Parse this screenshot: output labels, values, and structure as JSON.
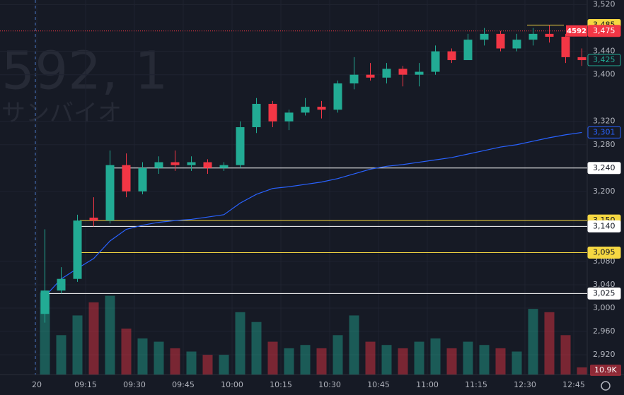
{
  "chart_data": {
    "type": "candlestick",
    "watermark": {
      "symbol": "592, 1",
      "name": "サンバイオ"
    },
    "categories": [
      "20",
      null,
      null,
      "09:15",
      null,
      null,
      "09:30",
      null,
      null,
      "09:45",
      null,
      null,
      "10:00",
      null,
      null,
      "10:15",
      null,
      null,
      "10:30",
      null,
      null,
      "10:45",
      null,
      null,
      "11:00",
      null,
      null,
      "11:15",
      null,
      null,
      "12:30",
      null,
      null,
      "12:45"
    ],
    "open": [
      2990,
      3030,
      3050,
      3155,
      3150,
      3245,
      3200,
      3240,
      3250,
      3245,
      3250,
      3240,
      3245,
      3310,
      3350,
      3320,
      3335,
      3345,
      3340,
      3385,
      3400,
      3395,
      3410,
      3400,
      3405,
      3440,
      3425,
      3460,
      3470,
      3445,
      3460,
      3470,
      3465,
      3430
    ],
    "high": [
      3135,
      3070,
      3160,
      3190,
      3270,
      3265,
      3250,
      3260,
      3270,
      3260,
      3255,
      3250,
      3320,
      3360,
      3355,
      3340,
      3360,
      3355,
      3390,
      3430,
      3420,
      3420,
      3415,
      3420,
      3450,
      3445,
      3470,
      3480,
      3475,
      3470,
      3480,
      3485,
      3470,
      3445
    ],
    "low": [
      2975,
      3025,
      3045,
      3140,
      3145,
      3190,
      3195,
      3230,
      3235,
      3235,
      3230,
      3235,
      3240,
      3300,
      3310,
      3305,
      3330,
      3325,
      3335,
      3375,
      3390,
      3385,
      3380,
      3380,
      3400,
      3420,
      3425,
      3450,
      3440,
      3440,
      3450,
      3455,
      3420,
      3415
    ],
    "close": [
      3030,
      3050,
      3150,
      3150,
      3245,
      3200,
      3240,
      3250,
      3245,
      3250,
      3240,
      3245,
      3310,
      3350,
      3320,
      3335,
      3345,
      3340,
      3385,
      3400,
      3395,
      3410,
      3400,
      3405,
      3440,
      3425,
      3460,
      3470,
      3445,
      3460,
      3470,
      3465,
      3430,
      3425
    ],
    "volume": [
      125,
      60,
      90,
      110,
      120,
      70,
      55,
      50,
      40,
      35,
      30,
      30,
      95,
      80,
      50,
      40,
      45,
      40,
      60,
      90,
      50,
      45,
      40,
      50,
      55,
      40,
      50,
      45,
      40,
      35,
      100,
      95,
      60,
      10.9
    ],
    "volume_label": "10.9K",
    "volume_ylim": [
      0,
      140
    ],
    "vwap": [
      3020,
      3050,
      3068,
      3085,
      3115,
      3135,
      3142,
      3147,
      3150,
      3152,
      3156,
      3160,
      3180,
      3195,
      3205,
      3208,
      3212,
      3216,
      3222,
      3230,
      3238,
      3243,
      3246,
      3250,
      3254,
      3258,
      3264,
      3270,
      3276,
      3280,
      3286,
      3292,
      3297,
      3301
    ],
    "vwap_color": "#2962ff",
    "vwap_tag": {
      "value": 3301,
      "label": "3,301"
    },
    "up_color": "#22ab94",
    "down_color": "#f23645",
    "ylim": [
      2851,
      3528
    ],
    "yticks": [
      {
        "value": 3520,
        "label": "3,520"
      },
      {
        "value": 3440,
        "label": "3,440"
      },
      {
        "value": 3400,
        "label": "3,400"
      },
      {
        "value": 3320,
        "label": "3,320"
      },
      {
        "value": 3280,
        "label": "3,280"
      },
      {
        "value": 3200,
        "label": "3,200"
      },
      {
        "value": 3080,
        "label": "3,080"
      },
      {
        "value": 3040,
        "label": "3,040"
      },
      {
        "value": 3000,
        "label": "3,000"
      },
      {
        "value": 2960,
        "label": "2,960"
      },
      {
        "value": 2920,
        "label": "2,920"
      }
    ],
    "grid": true,
    "levels": [
      {
        "value": 3485,
        "label": "3,485",
        "color": "#f5d742"
      },
      {
        "value": 3240,
        "label": "3,240",
        "color": "#ffffff"
      },
      {
        "value": 3150,
        "label": "3,150",
        "color": "#f5d742"
      },
      {
        "value": 3140,
        "label": "3,140",
        "color": "#ffffff"
      },
      {
        "value": 3095,
        "label": "3,095",
        "color": "#f5d742"
      },
      {
        "value": 3025,
        "label": "3,025",
        "color": "#ffffff"
      }
    ],
    "price_line": {
      "value": 3475,
      "label": "3,475",
      "symbol": "4592",
      "color": "#f23645"
    },
    "last_price": {
      "value": 3425,
      "label": "3,425"
    }
  }
}
